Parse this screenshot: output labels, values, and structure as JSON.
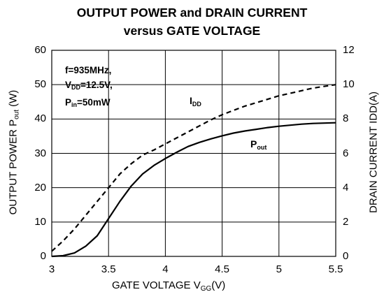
{
  "chart_data": {
    "type": "line",
    "title_line1": "OUTPUT POWER and DRAIN CURRENT",
    "title_line2": "versus GATE VOLTAGE",
    "xlabel": {
      "main": "GATE VOLTAGE V",
      "sub": "GG",
      "tail": "(V)"
    },
    "ylabel_left": {
      "main": "OUTPUT POWER P",
      "sub": "out",
      "tail": " (W)"
    },
    "ylabel_right": "DRAIN CURRENT IDD(A)",
    "xlim": [
      3,
      5.5
    ],
    "ylim_left": [
      0,
      60
    ],
    "ylim_right": [
      0,
      12
    ],
    "x_ticks": [
      "3",
      "3.5",
      "4",
      "4.5",
      "5",
      "5.5"
    ],
    "y_left_ticks": [
      "0",
      "10",
      "20",
      "30",
      "40",
      "50",
      "60"
    ],
    "y_right_ticks": [
      "0",
      "2",
      "4",
      "6",
      "8",
      "10",
      "12"
    ],
    "grid": true,
    "conditions": [
      {
        "main": "f=935MHz,",
        "sub": "",
        "tail": ""
      },
      {
        "main": "V",
        "sub": "DD",
        "tail": "=12.5V,"
      },
      {
        "main": "P",
        "sub": "in",
        "tail": "=50mW"
      }
    ],
    "series": [
      {
        "name": "Pout",
        "label_main": "P",
        "label_sub": "out",
        "axis": "left",
        "style": "solid",
        "x": [
          3.0,
          3.1,
          3.2,
          3.3,
          3.4,
          3.5,
          3.6,
          3.7,
          3.8,
          3.9,
          4.0,
          4.1,
          4.2,
          4.3,
          4.4,
          4.5,
          4.6,
          4.7,
          4.8,
          4.9,
          5.0,
          5.1,
          5.2,
          5.3,
          5.4,
          5.5
        ],
        "y": [
          0,
          0.2,
          1,
          3,
          6,
          11,
          16,
          20.5,
          24,
          26.5,
          28.5,
          30.3,
          32,
          33.2,
          34.2,
          35.1,
          35.9,
          36.5,
          37,
          37.5,
          37.9,
          38.2,
          38.5,
          38.7,
          38.8,
          38.9
        ]
      },
      {
        "name": "IDD",
        "label_main": "I",
        "label_sub": "DD",
        "axis": "right",
        "style": "dashed",
        "x": [
          3.0,
          3.1,
          3.2,
          3.3,
          3.4,
          3.5,
          3.6,
          3.7,
          3.8,
          3.9,
          4.0,
          4.1,
          4.2,
          4.3,
          4.4,
          4.5,
          4.6,
          4.7,
          4.8,
          4.9,
          5.0,
          5.1,
          5.2,
          5.3,
          5.4,
          5.5
        ],
        "y": [
          0.3,
          0.9,
          1.6,
          2.4,
          3.2,
          4.0,
          4.8,
          5.4,
          5.9,
          6.2,
          6.55,
          6.9,
          7.25,
          7.6,
          7.95,
          8.25,
          8.5,
          8.75,
          8.95,
          9.15,
          9.35,
          9.5,
          9.65,
          9.8,
          9.9,
          10.0
        ]
      }
    ]
  }
}
